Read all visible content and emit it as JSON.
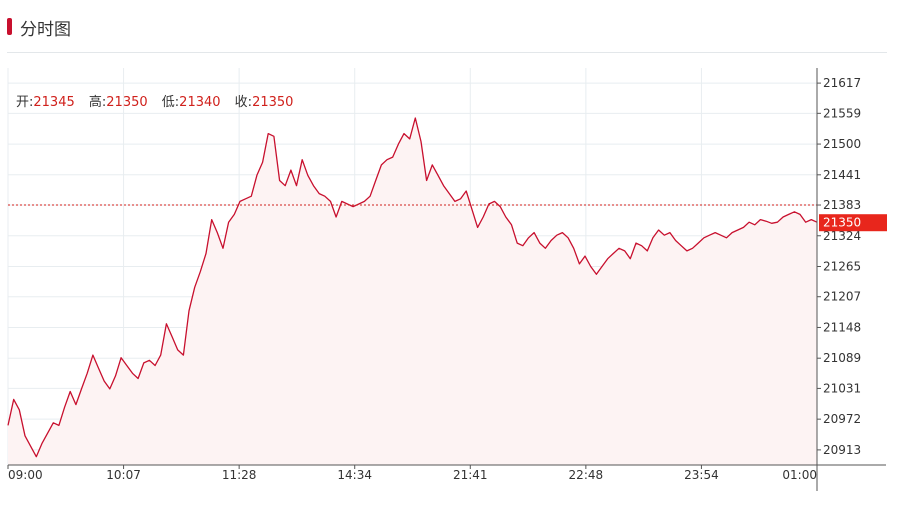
{
  "panel": {
    "title": "分时图"
  },
  "summary": {
    "open_label": "开:",
    "open_value": "21345",
    "high_label": "高:",
    "high_value": "21350",
    "low_label": "低:",
    "low_value": "21340",
    "close_label": "收:",
    "close_value": "21350"
  },
  "chart_data": {
    "type": "area",
    "title": "",
    "xlabel": "",
    "ylabel": "",
    "ylim": [
      20884,
      21646
    ],
    "y_ticks": [
      21617,
      21559,
      21500,
      21441,
      21383,
      21324,
      21265,
      21207,
      21148,
      21089,
      21031,
      20972,
      20913
    ],
    "x_tick_labels": [
      "09:00",
      "10:07",
      "11:28",
      "14:34",
      "21:41",
      "22:48",
      "23:54",
      "01:00"
    ],
    "reference_line": 21383,
    "current_price": 21350,
    "series": [
      {
        "values": [
          20960,
          21010,
          20990,
          20940,
          20920,
          20900,
          20925,
          20945,
          20965,
          20960,
          20995,
          21025,
          21000,
          21030,
          21060,
          21095,
          21070,
          21045,
          21030,
          21055,
          21090,
          21075,
          21060,
          21050,
          21080,
          21085,
          21075,
          21095,
          21155,
          21130,
          21105,
          21095,
          21180,
          21225,
          21255,
          21290,
          21355,
          21330,
          21300,
          21350,
          21365,
          21390,
          21395,
          21400,
          21440,
          21465,
          21520,
          21515,
          21430,
          21420,
          21450,
          21420,
          21470,
          21440,
          21420,
          21405,
          21400,
          21390,
          21360,
          21390,
          21385,
          21380,
          21385,
          21390,
          21400,
          21430,
          21460,
          21470,
          21475,
          21500,
          21520,
          21510,
          21550,
          21505,
          21430,
          21460,
          21440,
          21420,
          21405,
          21390,
          21395,
          21410,
          21375,
          21340,
          21360,
          21385,
          21390,
          21380,
          21360,
          21345,
          21310,
          21305,
          21320,
          21330,
          21310,
          21300,
          21315,
          21325,
          21330,
          21320,
          21300,
          21270,
          21285,
          21265,
          21250,
          21265,
          21280,
          21290,
          21300,
          21295,
          21280,
          21310,
          21305,
          21295,
          21320,
          21335,
          21325,
          21330,
          21315,
          21305,
          21295,
          21300,
          21310,
          21320,
          21325,
          21330,
          21325,
          21320,
          21330,
          21335,
          21340,
          21350,
          21345,
          21355,
          21352,
          21348,
          21350,
          21360,
          21365,
          21370,
          21365,
          21350,
          21355,
          21350
        ]
      }
    ]
  }
}
